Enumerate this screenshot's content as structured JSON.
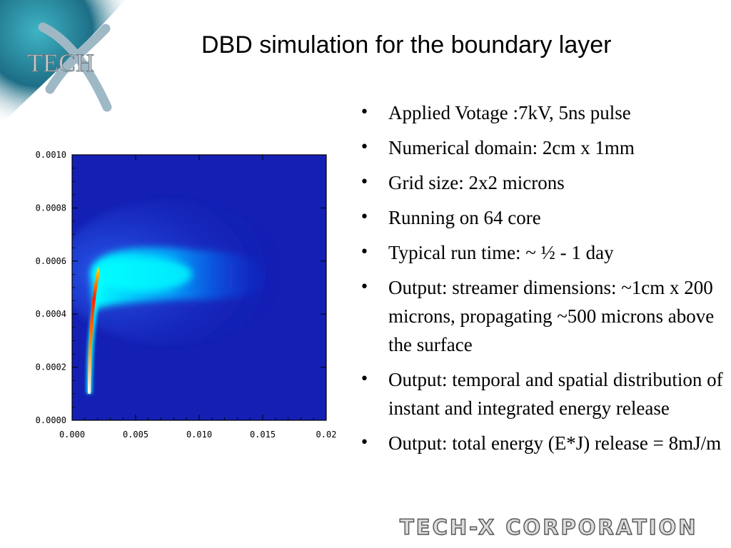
{
  "slide": {
    "title": "DBD simulation for the boundary layer",
    "logo_text": "TECH",
    "footer_logo": "TECH-X CORPORATION"
  },
  "bullets": [
    "Applied Votage :7kV, 5ns pulse",
    "Numerical domain: 2cm x 1mm",
    "Grid size: 2x2 microns",
    "Running on 64 core",
    "Typical run time: ~ ½ - 1 day",
    "Output: streamer dimensions: ~1cm x 200 microns, propagating ~500 microns above the surface",
    "Output: temporal and spatial distribution of instant and integrated energy release",
    "Output: total energy (E*J) release = 8mJ/m"
  ],
  "colors": {
    "background": "#ffffff",
    "field_background": "#1420b4",
    "plume_cyan": "#00ffff",
    "hot_core": "#ff2200",
    "logo_teal": "#3aa6b5"
  },
  "chart_data": {
    "type": "heatmap",
    "title": "",
    "xlabel": "",
    "ylabel": "",
    "xlim": [
      0,
      0.02
    ],
    "ylim": [
      0,
      0.001
    ],
    "x_ticks": [
      "0.000",
      "0.005",
      "0.010",
      "0.015",
      "0.02"
    ],
    "y_ticks": [
      "0.0000",
      "0.0002",
      "0.0004",
      "0.0006",
      "0.0008",
      "0.0010"
    ],
    "x_tick_values": [
      0,
      0.005,
      0.01,
      0.015,
      0.02
    ],
    "y_tick_values": [
      0,
      0.0002,
      0.0004,
      0.0006,
      0.0008,
      0.001
    ],
    "colormap": "rainbow (blue background, cyan plume, red/white core)",
    "features": {
      "plume": {
        "x_range": [
          0.0013,
          0.0155
        ],
        "y_range": [
          0.00045,
          0.00065
        ],
        "y_center": 0.00055
      },
      "stem": {
        "x_center": 0.00135,
        "y_range": [
          0.0001,
          0.00055
        ]
      },
      "hot_core": {
        "x_range": [
          0.0012,
          0.0018
        ],
        "y_range": [
          0.0001,
          0.00058
        ]
      }
    }
  }
}
